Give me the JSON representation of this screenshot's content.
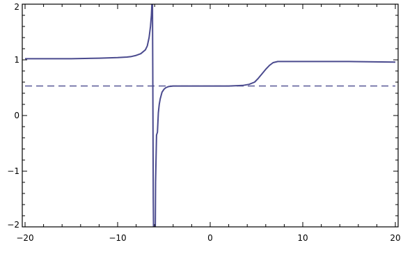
{
  "chart_data": {
    "type": "line",
    "title": "",
    "xlabel": "",
    "ylabel": "",
    "xlim": [
      -20.3,
      20.3
    ],
    "ylim": [
      -2,
      2
    ],
    "grid": false,
    "legend": "none",
    "x_ticks": [
      {
        "value": -20,
        "label": "−20"
      },
      {
        "value": -10,
        "label": "−10"
      },
      {
        "value": 0,
        "label": "0"
      },
      {
        "value": 10,
        "label": "10"
      },
      {
        "value": 20,
        "label": "20"
      }
    ],
    "y_ticks": [
      {
        "value": -2,
        "label": "−2"
      },
      {
        "value": -1,
        "label": "−1"
      },
      {
        "value": 0,
        "label": "0"
      },
      {
        "value": 1,
        "label": "1"
      },
      {
        "value": 2,
        "label": "2"
      }
    ],
    "series": [
      {
        "style": "solid",
        "color": "#4a4a8e",
        "x": [
          -20,
          -15,
          -12,
          -10,
          -9,
          -8.5,
          -8,
          -7.5,
          -7,
          -6.8,
          -6.6,
          -6.45,
          -6.35,
          -6.3,
          -6.25,
          -6.2,
          -6.15,
          -6.1,
          -6.05,
          -6.0,
          -5.95,
          -5.9,
          -5.8,
          -5.7,
          -5.6,
          -5.5,
          -5.4,
          -5.2,
          -5.0,
          -4.8,
          -4.5,
          -4.0,
          -3.0,
          0,
          2,
          3.5,
          4.2,
          4.8,
          5.2,
          5.6,
          6.0,
          6.4,
          6.8,
          7.3,
          8,
          10,
          15,
          20
        ],
        "y": [
          1.02,
          1.02,
          1.03,
          1.04,
          1.05,
          1.06,
          1.08,
          1.11,
          1.18,
          1.25,
          1.4,
          1.6,
          1.8,
          2.0,
          2.4,
          0.8,
          -1.5,
          -2.5,
          -2.5,
          -2.5,
          -2.5,
          -1.2,
          -0.35,
          -0.3,
          0.05,
          0.2,
          0.3,
          0.42,
          0.47,
          0.5,
          0.52,
          0.53,
          0.53,
          0.53,
          0.53,
          0.54,
          0.56,
          0.6,
          0.67,
          0.75,
          0.83,
          0.9,
          0.95,
          0.97,
          0.97,
          0.97,
          0.97,
          0.96
        ]
      },
      {
        "style": "dashed",
        "color": "#4a4a8e",
        "x": [
          -20,
          20
        ],
        "y": [
          0.53,
          0.53
        ]
      }
    ]
  }
}
